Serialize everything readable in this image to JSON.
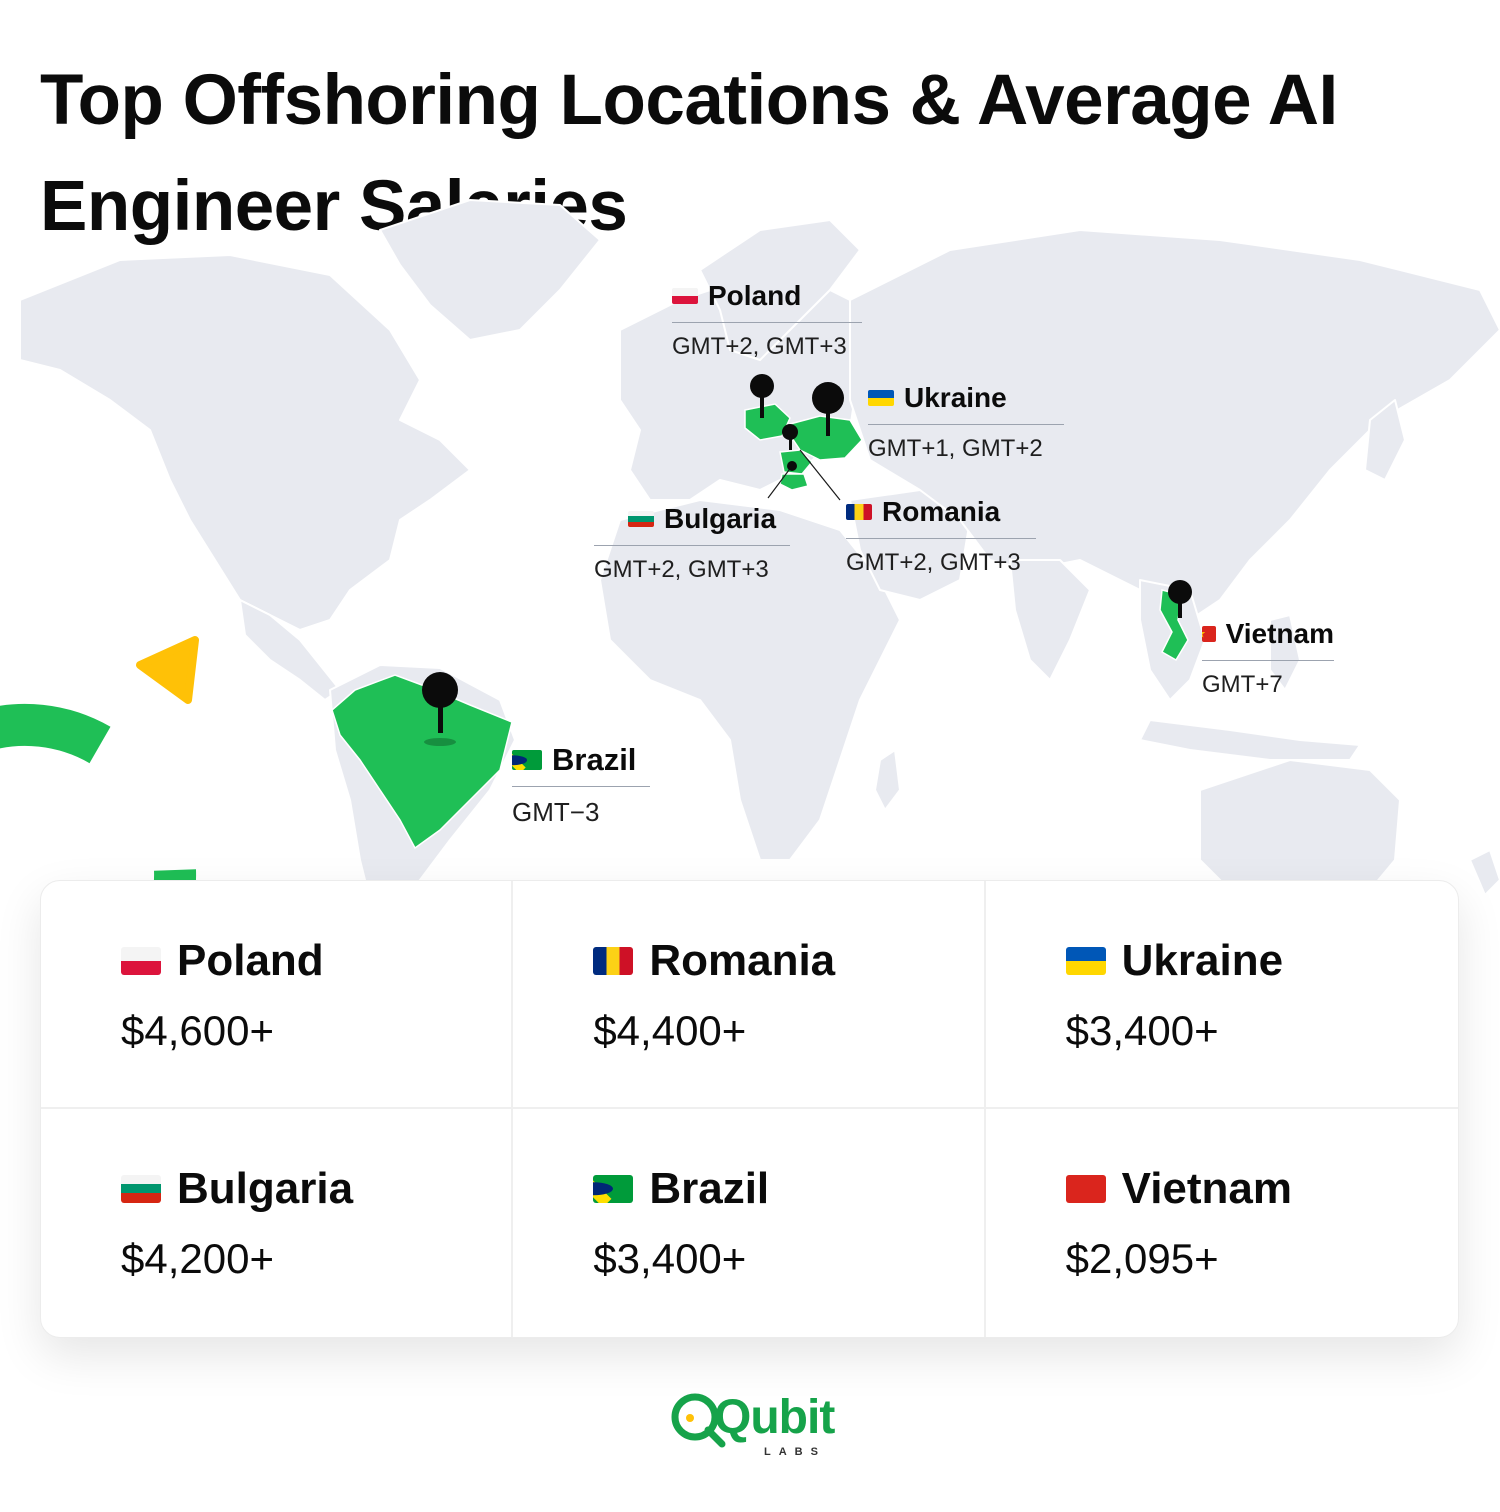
{
  "title": "Top Offshoring Locations & Average AI Engineer Salaries",
  "colors": {
    "accent_green": "#1fbf56",
    "map_land": "#e8eaf0",
    "pin": "#0b0b0b",
    "yellow_triangle": "#ffc107"
  },
  "map_labels": [
    {
      "country": "Poland",
      "flag": "flag-poland-icon",
      "timezone": "GMT+2, GMT+3"
    },
    {
      "country": "Ukraine",
      "flag": "flag-ukraine-icon",
      "timezone": "GMT+1, GMT+2"
    },
    {
      "country": "Bulgaria",
      "flag": "flag-bulgaria-icon",
      "timezone": "GMT+2, GMT+3"
    },
    {
      "country": "Romania",
      "flag": "flag-romania-icon",
      "timezone": "GMT+2, GMT+3"
    },
    {
      "country": "Vietnam",
      "flag": "flag-vietnam-icon",
      "timezone": "GMT+7"
    },
    {
      "country": "Brazil",
      "flag": "flag-brazil-icon",
      "timezone": "GMT−3"
    }
  ],
  "salaries": [
    {
      "country": "Poland",
      "flag": "flag-poland-icon",
      "salary": "$4,600+"
    },
    {
      "country": "Romania",
      "flag": "flag-romania-icon",
      "salary": "$4,400+"
    },
    {
      "country": "Ukraine",
      "flag": "flag-ukraine-icon",
      "salary": "$3,400+"
    },
    {
      "country": "Bulgaria",
      "flag": "flag-bulgaria-icon",
      "salary": "$4,200+"
    },
    {
      "country": "Brazil",
      "flag": "flag-brazil-icon",
      "salary": "$3,400+"
    },
    {
      "country": "Vietnam",
      "flag": "flag-vietnam-icon",
      "salary": "$2,095+"
    }
  ],
  "logo": {
    "name": "Qubit",
    "sub": "LABS"
  }
}
